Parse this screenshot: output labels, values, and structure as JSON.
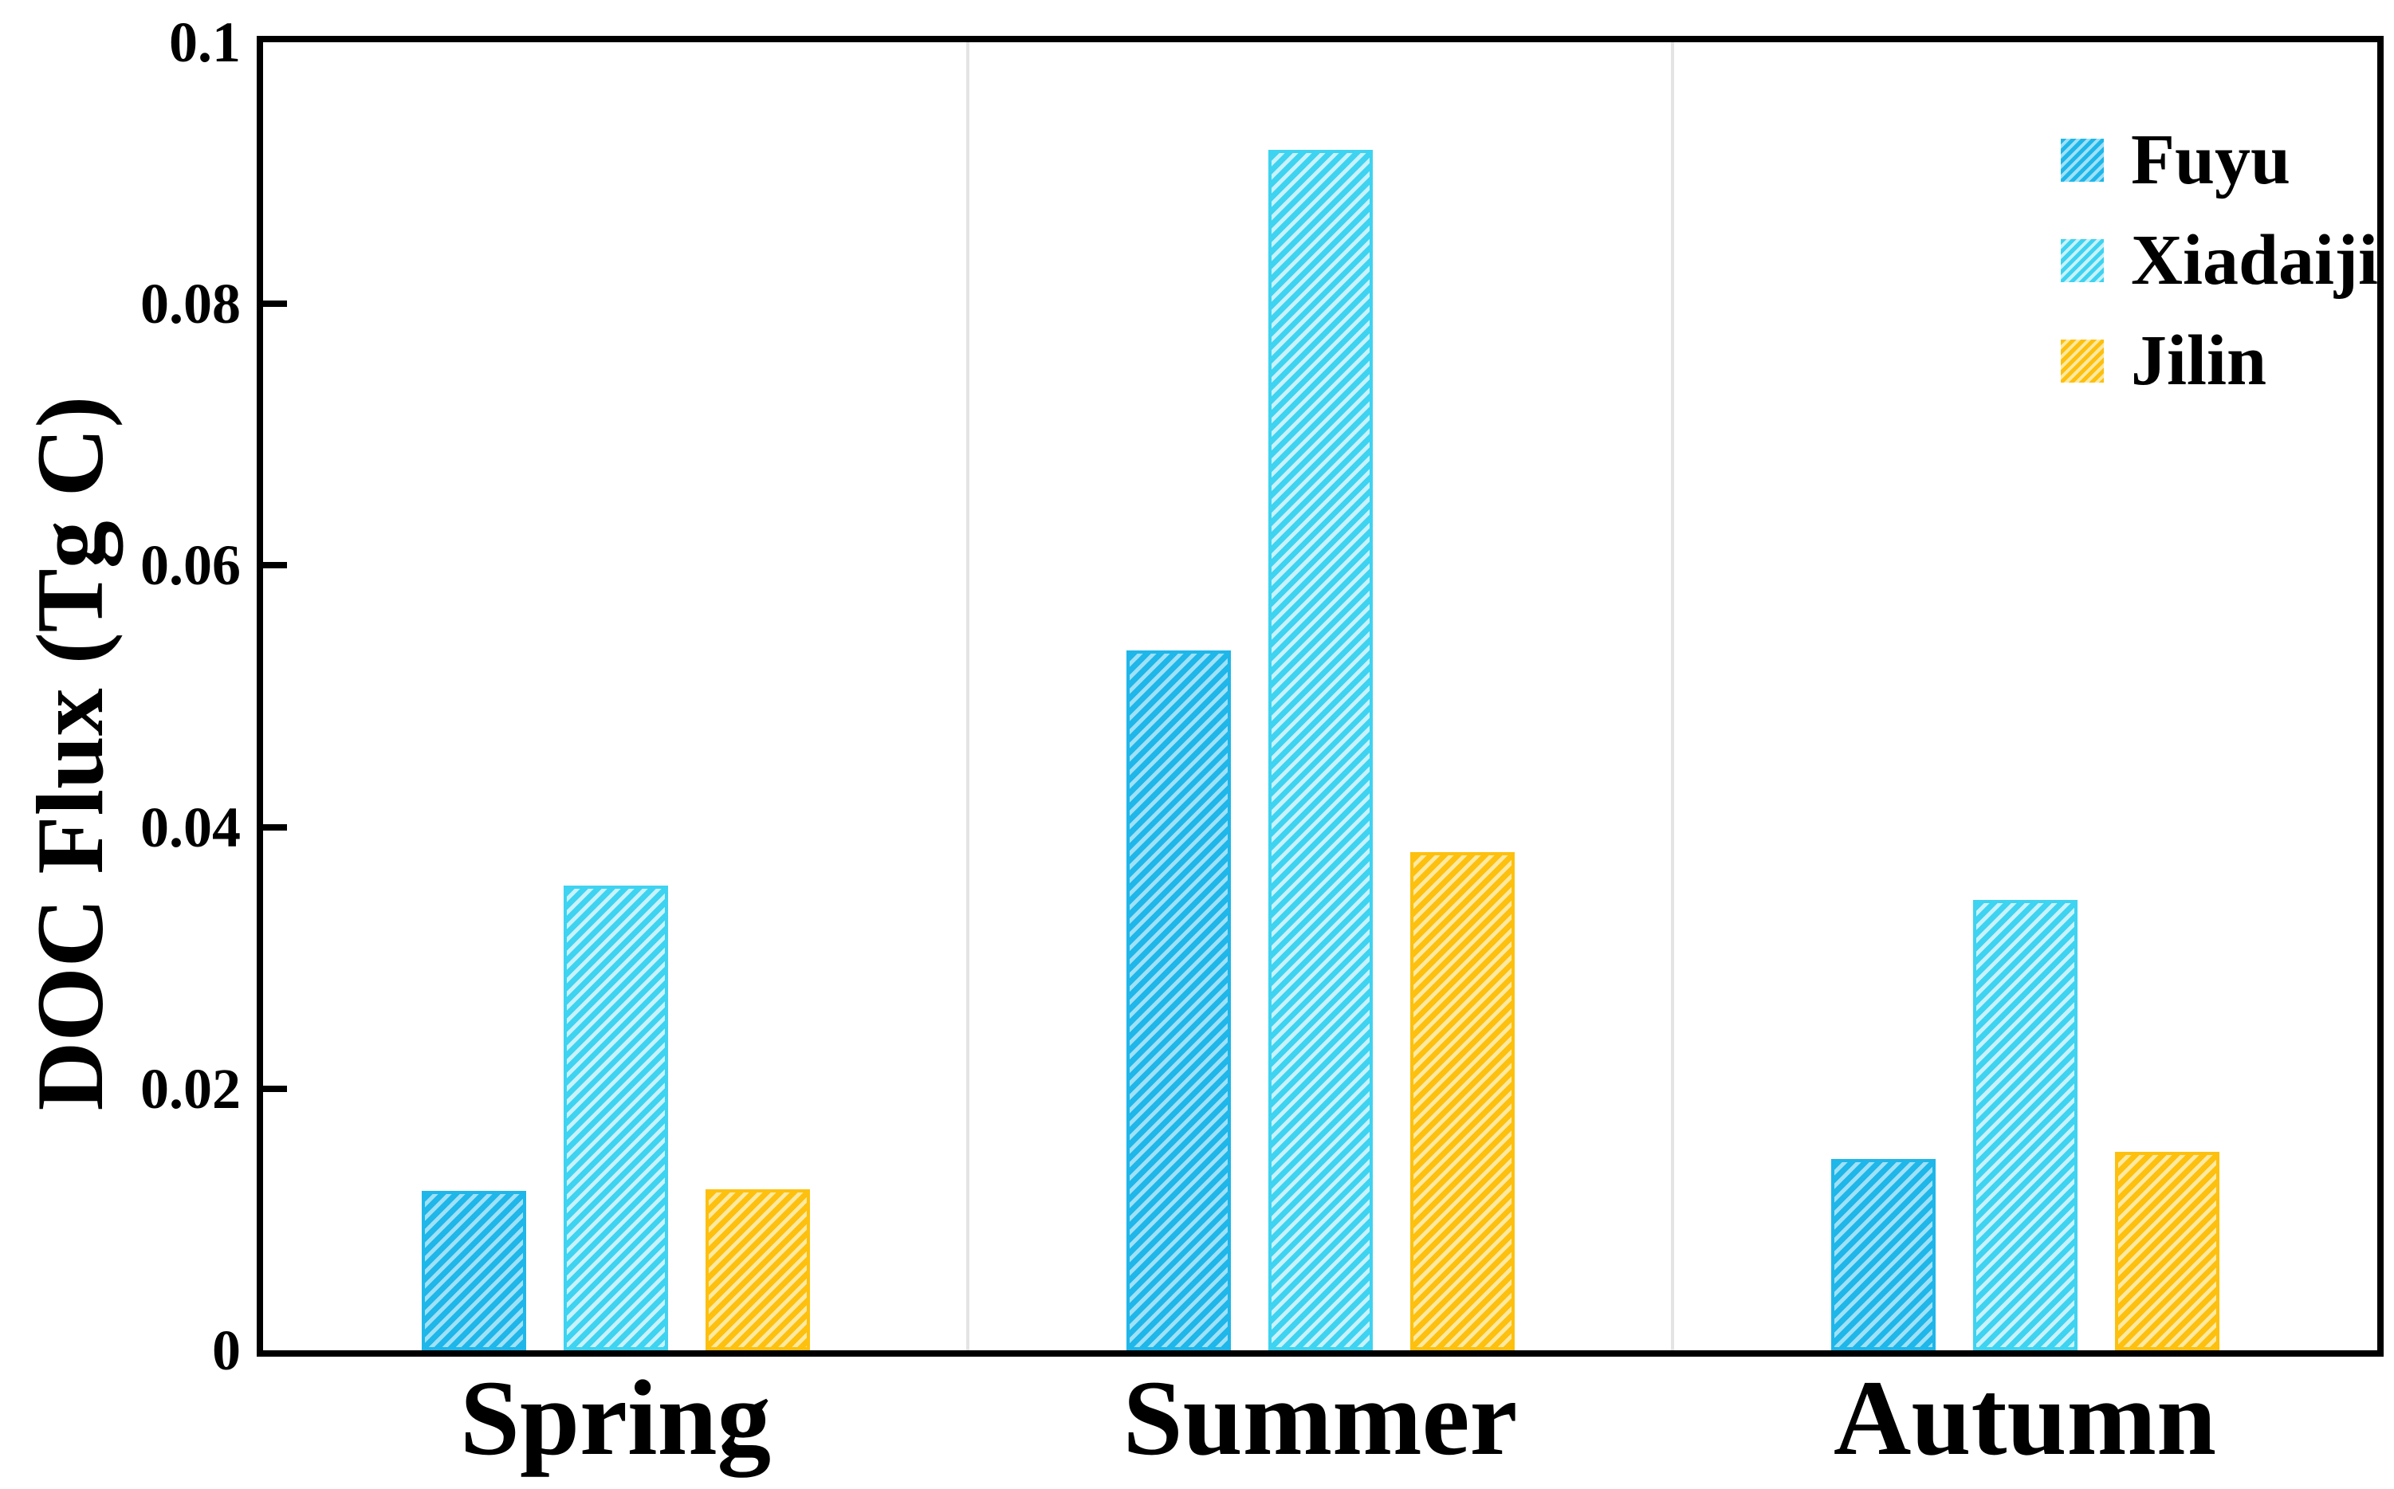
{
  "figure": {
    "background": "#ffffff",
    "axis_color": "#000000",
    "separator_color": "#e4e4e4"
  },
  "chart_data": {
    "type": "bar",
    "title": "",
    "xlabel": "",
    "ylabel": "DOC Flux (Tg C)",
    "ylim": [
      0,
      0.1
    ],
    "yticks": [
      {
        "label": "0.1",
        "value": 0.1
      },
      {
        "label": "0.08",
        "value": 0.08
      },
      {
        "label": "0.06",
        "value": 0.06
      },
      {
        "label": "0.04",
        "value": 0.04
      },
      {
        "label": "0.02",
        "value": 0.02
      },
      {
        "label": "0",
        "value": 0
      }
    ],
    "categories": [
      "Spring",
      "Summer",
      "Autumn"
    ],
    "series": [
      {
        "name": "Fuyu",
        "color": "#1FB6E9",
        "hatch_color": "#9FE1F6",
        "values": [
          0.0122,
          0.0535,
          0.0146
        ]
      },
      {
        "name": "Xiadaiji",
        "color": "#3ED3F0",
        "hatch_color": "#C9F2FB",
        "values": [
          0.0355,
          0.0918,
          0.0344
        ]
      },
      {
        "name": "Jilin",
        "color": "#FDC00F",
        "hatch_color": "#FEE9A1",
        "values": [
          0.0123,
          0.0381,
          0.0152
        ]
      }
    ],
    "hatch": "diagonal-forward",
    "grid": "vertical category separators only",
    "legend_position": "top-right inside plot"
  }
}
